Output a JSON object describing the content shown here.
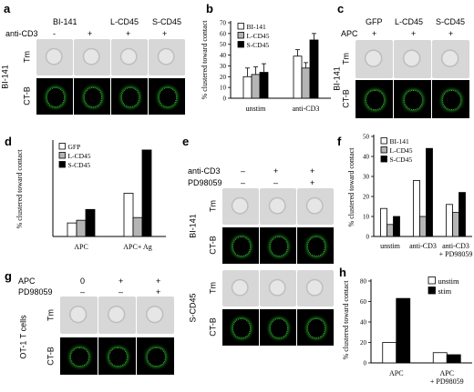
{
  "panels": {
    "a": {
      "letter": "a",
      "col_labels": [
        "BI-141",
        "L-CD45",
        "S-CD45"
      ],
      "treat_label": "anti-CD3",
      "treat_signs": [
        "-",
        "+",
        "+",
        "+"
      ],
      "row_labels": [
        "Tm",
        "CT-B"
      ],
      "side_label": "BI-141"
    },
    "b": {
      "letter": "b"
    },
    "c": {
      "letter": "c",
      "col_labels": [
        "GFP",
        "L-CD45",
        "S-CD45"
      ],
      "treat_label": "APC",
      "treat_signs": [
        "+",
        "+",
        "+"
      ],
      "row_labels": [
        "Tm",
        "CT-B"
      ],
      "side_label": "BI-141"
    },
    "d": {
      "letter": "d"
    },
    "e": {
      "letter": "e",
      "treat_labels": [
        "anti-CD3",
        "PD98059"
      ],
      "signs_row1": [
        "–",
        "+",
        "+"
      ],
      "signs_row2": [
        "–",
        "–",
        "+"
      ],
      "row_labels": [
        "Tm",
        "CT-B",
        "Tm",
        "CT-B"
      ],
      "side_labels": [
        "BI-141",
        "S-CD45"
      ]
    },
    "f": {
      "letter": "f"
    },
    "g": {
      "letter": "g",
      "treat_labels": [
        "APC",
        "PD98059"
      ],
      "signs_row1": [
        "0",
        "+",
        "+"
      ],
      "signs_row2": [
        "–",
        "–",
        "+"
      ],
      "row_labels": [
        "Tm",
        "CT-B"
      ],
      "side_label": "OT-1 T cells"
    },
    "h": {
      "letter": "h"
    }
  },
  "chart_data": [
    {
      "id": "b",
      "type": "bar",
      "ylabel": "% clustered toward contact",
      "categories": [
        "unstim",
        "anti-CD3"
      ],
      "series": [
        {
          "name": "BI-141",
          "color": "#ffffff",
          "values": [
            20,
            39
          ]
        },
        {
          "name": "L-CD45",
          "color": "#b5b5b5",
          "values": [
            22,
            28
          ]
        },
        {
          "name": "S-CD45",
          "color": "#000000",
          "values": [
            24,
            54
          ]
        }
      ],
      "errors": [
        [
          8,
          6
        ],
        [
          7,
          5
        ],
        [
          8,
          6
        ]
      ],
      "ylim": [
        0,
        70
      ],
      "yticks": [
        0,
        10,
        20,
        30,
        40,
        50,
        60,
        70
      ],
      "legend": "top-left"
    },
    {
      "id": "d",
      "type": "bar",
      "ylabel": "% clustered toward contact",
      "categories": [
        "APC",
        "APC+ Ag"
      ],
      "series": [
        {
          "name": "GFP",
          "color": "#ffffff",
          "values": [
            5,
            16
          ]
        },
        {
          "name": "L-CD45",
          "color": "#b5b5b5",
          "values": [
            6,
            7
          ]
        },
        {
          "name": "S-CD45",
          "color": "#000000",
          "values": [
            10,
            32
          ]
        }
      ],
      "ylim": [
        0,
        35
      ],
      "legend": "top-left"
    },
    {
      "id": "f",
      "type": "bar",
      "ylabel": "% clustered toward contact",
      "categories": [
        "unstim",
        "anti-CD3",
        "anti-CD3\n+ PD98059"
      ],
      "series": [
        {
          "name": "BI-141",
          "color": "#ffffff",
          "values": [
            14,
            28,
            16
          ]
        },
        {
          "name": "L-CD45",
          "color": "#b5b5b5",
          "values": [
            6,
            10,
            12
          ]
        },
        {
          "name": "S-CD45",
          "color": "#000000",
          "values": [
            10,
            44,
            22
          ]
        }
      ],
      "ylim": [
        0,
        50
      ],
      "yticks": [
        0,
        10,
        20,
        30,
        40,
        50
      ],
      "legend": "top-left"
    },
    {
      "id": "h",
      "type": "bar",
      "ylabel": "% clustered toward contact",
      "categories": [
        "APC",
        "APC\n+ PD98059"
      ],
      "series": [
        {
          "name": "unstim",
          "color": "#ffffff",
          "values": [
            20,
            10
          ]
        },
        {
          "name": "stim",
          "color": "#000000",
          "values": [
            63,
            8
          ]
        }
      ],
      "ylim": [
        0,
        80
      ],
      "yticks": [
        0,
        20,
        40,
        60,
        80
      ],
      "legend": "top-right"
    }
  ]
}
